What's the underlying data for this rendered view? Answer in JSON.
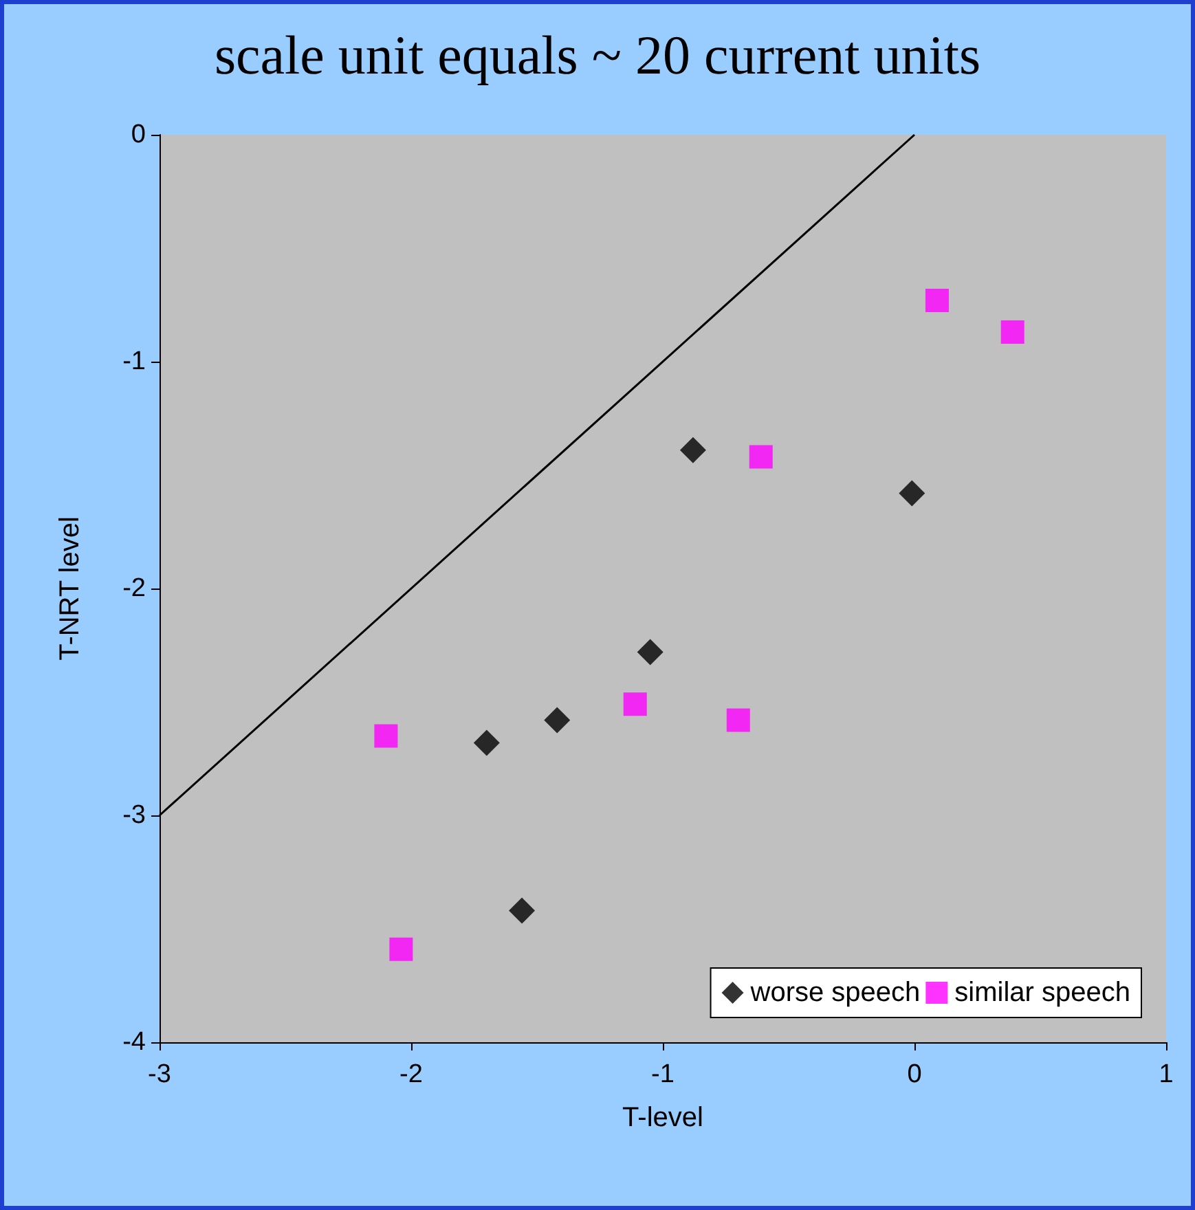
{
  "chart_data": {
    "type": "scatter",
    "title": "scale unit equals ~ 20 current units",
    "xlabel": "T-level",
    "ylabel": "T-NRT level",
    "xlim": [
      -3,
      1
    ],
    "xticks": [
      -3,
      -2,
      -1,
      0,
      1
    ],
    "ylim": [
      -4,
      0
    ],
    "yticks": [
      -4,
      -3,
      -2,
      -1,
      0
    ],
    "grid": false,
    "legend": "bottom right",
    "series": [
      {
        "name": "worse speech",
        "color": "#000000",
        "marker": "diamond",
        "x": [
          -0.88,
          -0.01,
          -1.05,
          -1.42,
          -1.7,
          -1.56
        ],
        "values": [
          -1.39,
          -1.58,
          -2.28,
          -2.58,
          -2.68,
          -3.42
        ]
      },
      {
        "name": "similar speech",
        "color": "#ff00ff",
        "marker": "square",
        "x": [
          0.09,
          0.39,
          -0.61,
          -1.11,
          -0.7,
          -2.1,
          -2.04
        ],
        "values": [
          -0.73,
          -0.87,
          -1.42,
          -2.51,
          -2.58,
          -2.65,
          -3.59
        ]
      },
      {
        "type": "line",
        "color": "#000000",
        "marker": "none",
        "line_style": "solid",
        "x": [
          -3,
          0
        ],
        "values": [
          -3,
          0
        ]
      }
    ]
  }
}
